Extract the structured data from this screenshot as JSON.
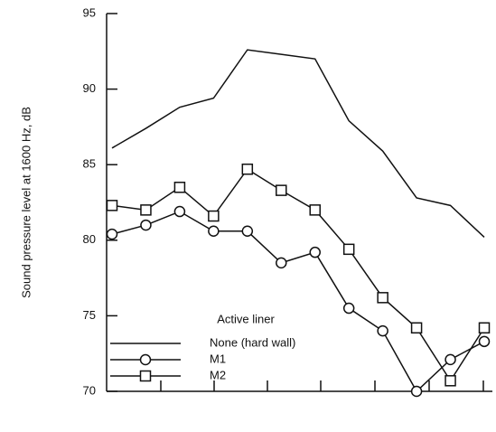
{
  "chart_data": {
    "type": "line",
    "y_label": "Sound pressure level at 1600 Hz, dB",
    "legend_title": "Active liner",
    "categories": [
      null,
      null,
      null,
      null,
      null,
      null,
      null,
      null,
      null,
      null,
      null,
      null
    ],
    "series": [
      {
        "name": "None (hard wall)",
        "color": "#111111",
        "marker": "none",
        "values": [
          86.1,
          87.4,
          88.8,
          89.4,
          92.6,
          92.3,
          92.0,
          87.9,
          85.9,
          82.8,
          82.3,
          80.2
        ]
      },
      {
        "name": "M1",
        "color": "#111111",
        "marker": "circle",
        "values": [
          80.4,
          81.0,
          81.9,
          80.6,
          80.6,
          78.5,
          79.2,
          75.5,
          74.0,
          70.0,
          72.1,
          73.3
        ]
      },
      {
        "name": "M2",
        "color": "#111111",
        "marker": "square",
        "values": [
          82.3,
          82.0,
          83.5,
          81.6,
          84.7,
          83.3,
          82.0,
          79.4,
          76.2,
          74.2,
          70.7,
          74.2
        ]
      }
    ],
    "ylim": [
      70,
      95
    ],
    "yticks": [
      70,
      75,
      80,
      85,
      90,
      95
    ],
    "grid": false
  }
}
